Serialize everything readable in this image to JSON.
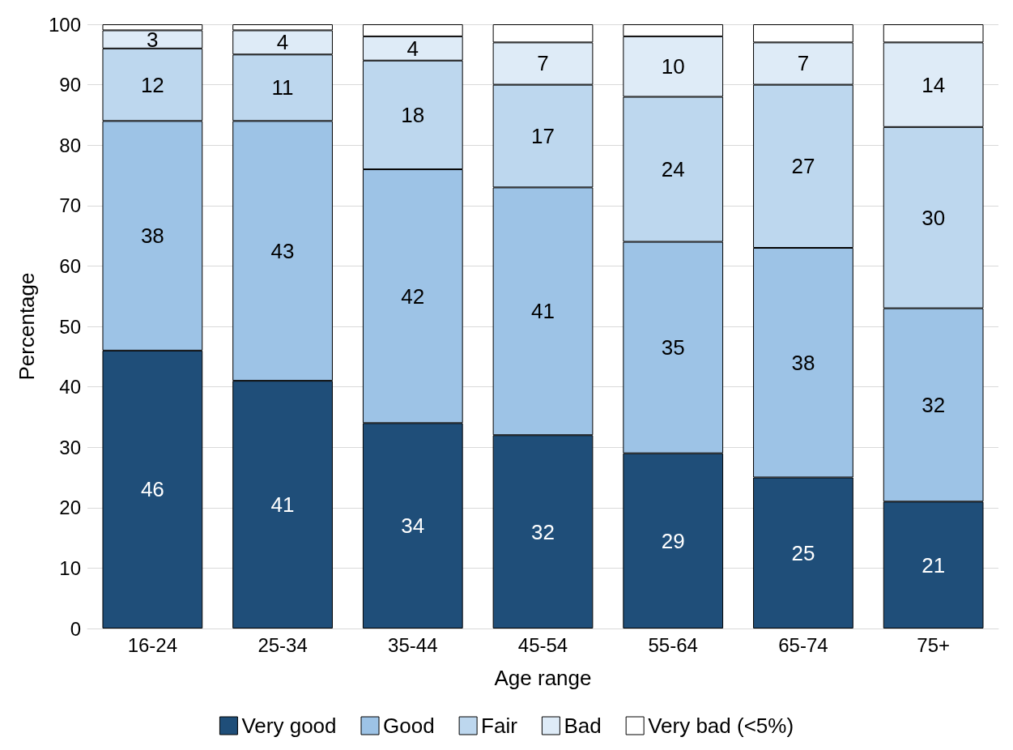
{
  "chart_data": {
    "type": "bar",
    "stacked": true,
    "xlabel": "Age range",
    "ylabel": "Percentage",
    "categories": [
      "16-24",
      "25-34",
      "35-44",
      "45-54",
      "55-64",
      "65-74",
      "75+"
    ],
    "series": [
      {
        "name": "Very good",
        "color": "#1f4e79",
        "values": [
          46,
          41,
          34,
          32,
          29,
          25,
          21
        ],
        "value_labels": [
          "46",
          "41",
          "34",
          "32",
          "29",
          "25",
          "21"
        ]
      },
      {
        "name": "Good",
        "color": "#9dc3e6",
        "values": [
          38,
          43,
          42,
          41,
          35,
          38,
          32
        ],
        "value_labels": [
          "38",
          "43",
          "42",
          "41",
          "35",
          "38",
          "32"
        ]
      },
      {
        "name": "Fair",
        "color": "#bdd7ee",
        "values": [
          12,
          11,
          18,
          17,
          24,
          27,
          30
        ],
        "value_labels": [
          "12",
          "11",
          "18",
          "17",
          "24",
          "27",
          "30"
        ]
      },
      {
        "name": "Bad",
        "color": "#deebf7",
        "values": [
          3,
          4,
          4,
          7,
          10,
          7,
          14
        ],
        "value_labels": [
          "3",
          "4",
          "4",
          "7",
          "10",
          "7",
          "14"
        ]
      },
      {
        "name": "Very bad (<5%)",
        "color": "#ffffff",
        "values": [
          1,
          1,
          2,
          3,
          2,
          3,
          3
        ]
      }
    ],
    "ylim": [
      0,
      100
    ],
    "yticks": [
      0,
      10,
      20,
      30,
      40,
      50,
      60,
      70,
      80,
      90,
      100
    ],
    "grid": "y",
    "legend": "bottom"
  }
}
